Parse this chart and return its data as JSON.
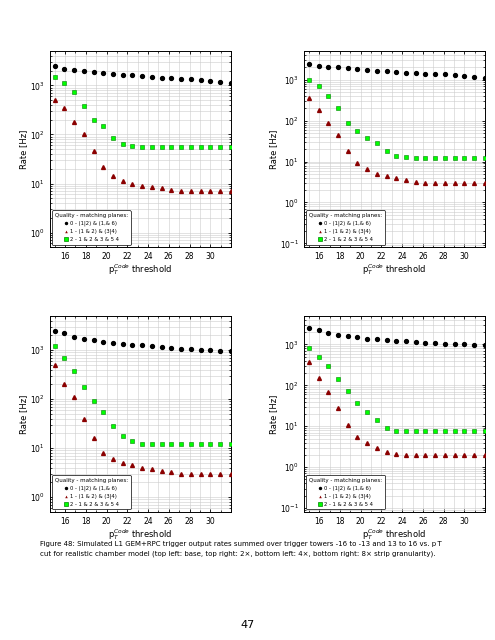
{
  "page_number": "47",
  "caption": "Figure 48: Simulated L1 GEM+RPC trigger output rates summed over trigger towers -16 to -13 and 13 to 16 vs. p_T\ncut for realistic chamber model (top left: base, top right: 2×, bottom left: 4×, bottom right: 8× strip granularity).",
  "x_ticks": [
    16,
    18,
    20,
    22,
    24,
    26,
    28,
    30
  ],
  "xlabel": "p$_T^{Code}$ threshold",
  "ylabel": "Rate [Hz]",
  "legend_title": "Quality - matching planes:",
  "legend_entries": [
    "0 - (1|2) & (1,& 6)",
    "1 - (1 & 2) & (3|4)",
    "2 - 1 & 2 & 3 & 5 4"
  ],
  "x_vals": [
    15,
    15.94,
    16.88,
    17.81,
    18.75,
    19.69,
    20.63,
    21.56,
    22.5,
    23.44,
    24.38,
    25.31,
    26.25,
    27.19,
    28.13,
    29.06,
    30.0,
    30.94,
    32.0
  ],
  "plots": [
    {
      "ylim": [
        0.5,
        5000
      ],
      "black_y": [
        2500,
        2200,
        2100,
        2000,
        1900,
        1800,
        1700,
        1650,
        1600,
        1550,
        1500,
        1450,
        1400,
        1380,
        1350,
        1300,
        1250,
        1200,
        1100
      ],
      "red_y": [
        500,
        350,
        180,
        100,
        45,
        22,
        14,
        11,
        10,
        9,
        8.5,
        8,
        7.5,
        7,
        7,
        7,
        7,
        7,
        7
      ],
      "green_y": [
        1500,
        1100,
        750,
        380,
        200,
        150,
        85,
        65,
        58,
        56,
        55,
        55,
        55,
        55,
        55,
        55,
        55,
        55,
        55
      ]
    },
    {
      "ylim": [
        0.08,
        5000
      ],
      "black_y": [
        2500,
        2200,
        2100,
        2000,
        1900,
        1800,
        1700,
        1650,
        1600,
        1550,
        1500,
        1450,
        1400,
        1380,
        1350,
        1300,
        1250,
        1200,
        1100
      ],
      "red_y": [
        350,
        180,
        90,
        45,
        18,
        9,
        6.5,
        5,
        4.5,
        4,
        3.5,
        3.2,
        3,
        3,
        3,
        3,
        3,
        3,
        3
      ],
      "green_y": [
        1000,
        700,
        400,
        200,
        90,
        55,
        38,
        28,
        18,
        14,
        13,
        12,
        12,
        12,
        12,
        12,
        12,
        12,
        12
      ]
    },
    {
      "ylim": [
        0.5,
        5000
      ],
      "black_y": [
        2500,
        2200,
        1900,
        1700,
        1600,
        1500,
        1400,
        1350,
        1300,
        1250,
        1200,
        1150,
        1100,
        1080,
        1050,
        1020,
        1000,
        980,
        950
      ],
      "red_y": [
        500,
        200,
        110,
        40,
        16,
        8,
        6,
        5,
        4.5,
        4,
        3.8,
        3.5,
        3.2,
        3,
        3,
        3,
        3,
        3,
        3
      ],
      "green_y": [
        1200,
        700,
        380,
        180,
        90,
        55,
        28,
        18,
        14,
        12,
        12,
        12,
        12,
        12,
        12,
        12,
        12,
        12,
        12
      ]
    },
    {
      "ylim": [
        0.08,
        5000
      ],
      "black_y": [
        2500,
        2200,
        1900,
        1700,
        1600,
        1500,
        1400,
        1350,
        1300,
        1250,
        1200,
        1150,
        1100,
        1080,
        1050,
        1020,
        1000,
        980,
        950
      ],
      "red_y": [
        380,
        150,
        70,
        28,
        11,
        5.5,
        3.8,
        3,
        2.4,
        2.1,
        2,
        2,
        2,
        2,
        2,
        2,
        2,
        2,
        2
      ],
      "green_y": [
        800,
        500,
        290,
        145,
        72,
        38,
        22,
        14,
        9,
        7.8,
        7.5,
        7.5,
        7.5,
        7.5,
        7.5,
        7.5,
        7.5,
        7.5,
        7.5
      ]
    }
  ]
}
